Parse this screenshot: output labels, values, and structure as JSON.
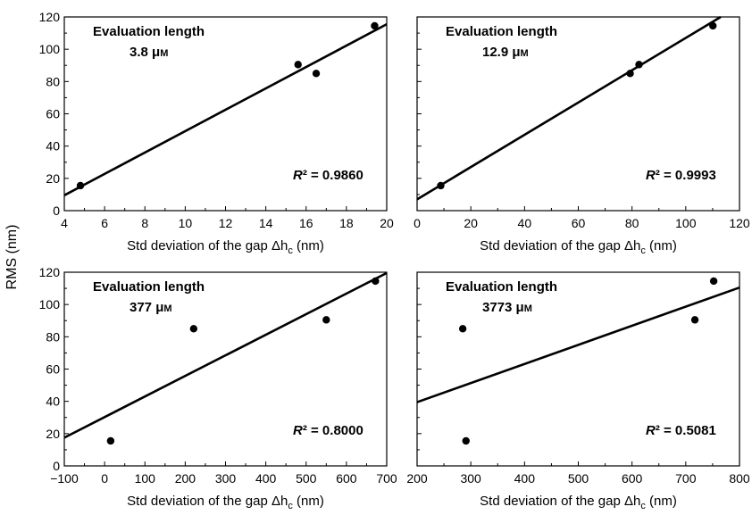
{
  "figure": {
    "ylabel": "RMS (nm)"
  },
  "chart_data": [
    {
      "type": "scatter",
      "panel": "top-left",
      "xlabel": "Std deviation of the gap Δh",
      "xlabel_subscript": "c",
      "xlabel_unit": " (nm)",
      "xlim": [
        4,
        20
      ],
      "ylim": [
        0,
        120
      ],
      "xticks": [
        4,
        6,
        8,
        10,
        12,
        14,
        16,
        18,
        20
      ],
      "yticks": [
        0,
        20,
        40,
        60,
        80,
        100,
        120
      ],
      "show_yticklabels": true,
      "annotation_title": "Evaluation length",
      "annotation_value": "3.8 μ",
      "annotation_unit": "M",
      "r2_label": "R",
      "r2_text": "² = 0.9860",
      "points": [
        {
          "x": 4.8,
          "y": 15.5
        },
        {
          "x": 15.6,
          "y": 90.5
        },
        {
          "x": 16.5,
          "y": 85.0
        },
        {
          "x": 19.4,
          "y": 114.5
        }
      ],
      "fit_line": [
        {
          "x": 4,
          "y": 9.5
        },
        {
          "x": 20,
          "y": 115.5
        }
      ]
    },
    {
      "type": "scatter",
      "panel": "top-right",
      "xlabel": "Std deviation of the gap Δh",
      "xlabel_subscript": "c",
      "xlabel_unit": " (nm)",
      "xlim": [
        0,
        120
      ],
      "ylim": [
        0,
        120
      ],
      "xticks": [
        0,
        20,
        40,
        60,
        80,
        100,
        120
      ],
      "yticks": [
        0,
        20,
        40,
        60,
        80,
        100,
        120
      ],
      "show_yticklabels": false,
      "annotation_title": "Evaluation length",
      "annotation_value": "12.9 μ",
      "annotation_unit": "M",
      "r2_label": "R",
      "r2_text": "² = 0.9993",
      "points": [
        {
          "x": 8.8,
          "y": 15.5
        },
        {
          "x": 79.3,
          "y": 85.0
        },
        {
          "x": 82.6,
          "y": 90.5
        },
        {
          "x": 110.1,
          "y": 114.5
        }
      ],
      "fit_line": [
        {
          "x": 0,
          "y": 7.0
        },
        {
          "x": 113,
          "y": 120
        }
      ]
    },
    {
      "type": "scatter",
      "panel": "bottom-left",
      "xlabel": "Std deviation of the gap Δh",
      "xlabel_subscript": "c",
      "xlabel_unit": " (nm)",
      "xlim": [
        -100,
        700
      ],
      "ylim": [
        0,
        120
      ],
      "xticks": [
        -100,
        0,
        100,
        200,
        300,
        400,
        500,
        600,
        700
      ],
      "yticks": [
        0,
        20,
        40,
        60,
        80,
        100,
        120
      ],
      "show_yticklabels": true,
      "annotation_title": "Evaluation length",
      "annotation_value": "377 μ",
      "annotation_unit": "M",
      "r2_label": "R",
      "r2_text": "² = 0.8000",
      "points": [
        {
          "x": 15,
          "y": 15.5
        },
        {
          "x": 221,
          "y": 85.0
        },
        {
          "x": 550,
          "y": 90.5
        },
        {
          "x": 672,
          "y": 114.5
        }
      ],
      "fit_line": [
        {
          "x": -100,
          "y": 17.5
        },
        {
          "x": 700,
          "y": 119.5
        }
      ]
    },
    {
      "type": "scatter",
      "panel": "bottom-right",
      "xlabel": "Std deviation of the gap Δh",
      "xlabel_subscript": "c",
      "xlabel_unit": " (nm)",
      "xlim": [
        200,
        800
      ],
      "ylim": [
        0,
        120
      ],
      "xticks": [
        200,
        300,
        400,
        500,
        600,
        700,
        800
      ],
      "yticks": [
        0,
        20,
        40,
        60,
        80,
        100,
        120
      ],
      "show_yticklabels": false,
      "annotation_title": "Evaluation length",
      "annotation_value": "3773 μ",
      "annotation_unit": "M",
      "r2_label": "R",
      "r2_text": "² = 0.5081",
      "points": [
        {
          "x": 285,
          "y": 85.0
        },
        {
          "x": 291,
          "y": 15.5
        },
        {
          "x": 717,
          "y": 90.5
        },
        {
          "x": 752,
          "y": 114.5
        }
      ],
      "fit_line": [
        {
          "x": 200,
          "y": 39.5
        },
        {
          "x": 800,
          "y": 110.5
        }
      ]
    }
  ]
}
